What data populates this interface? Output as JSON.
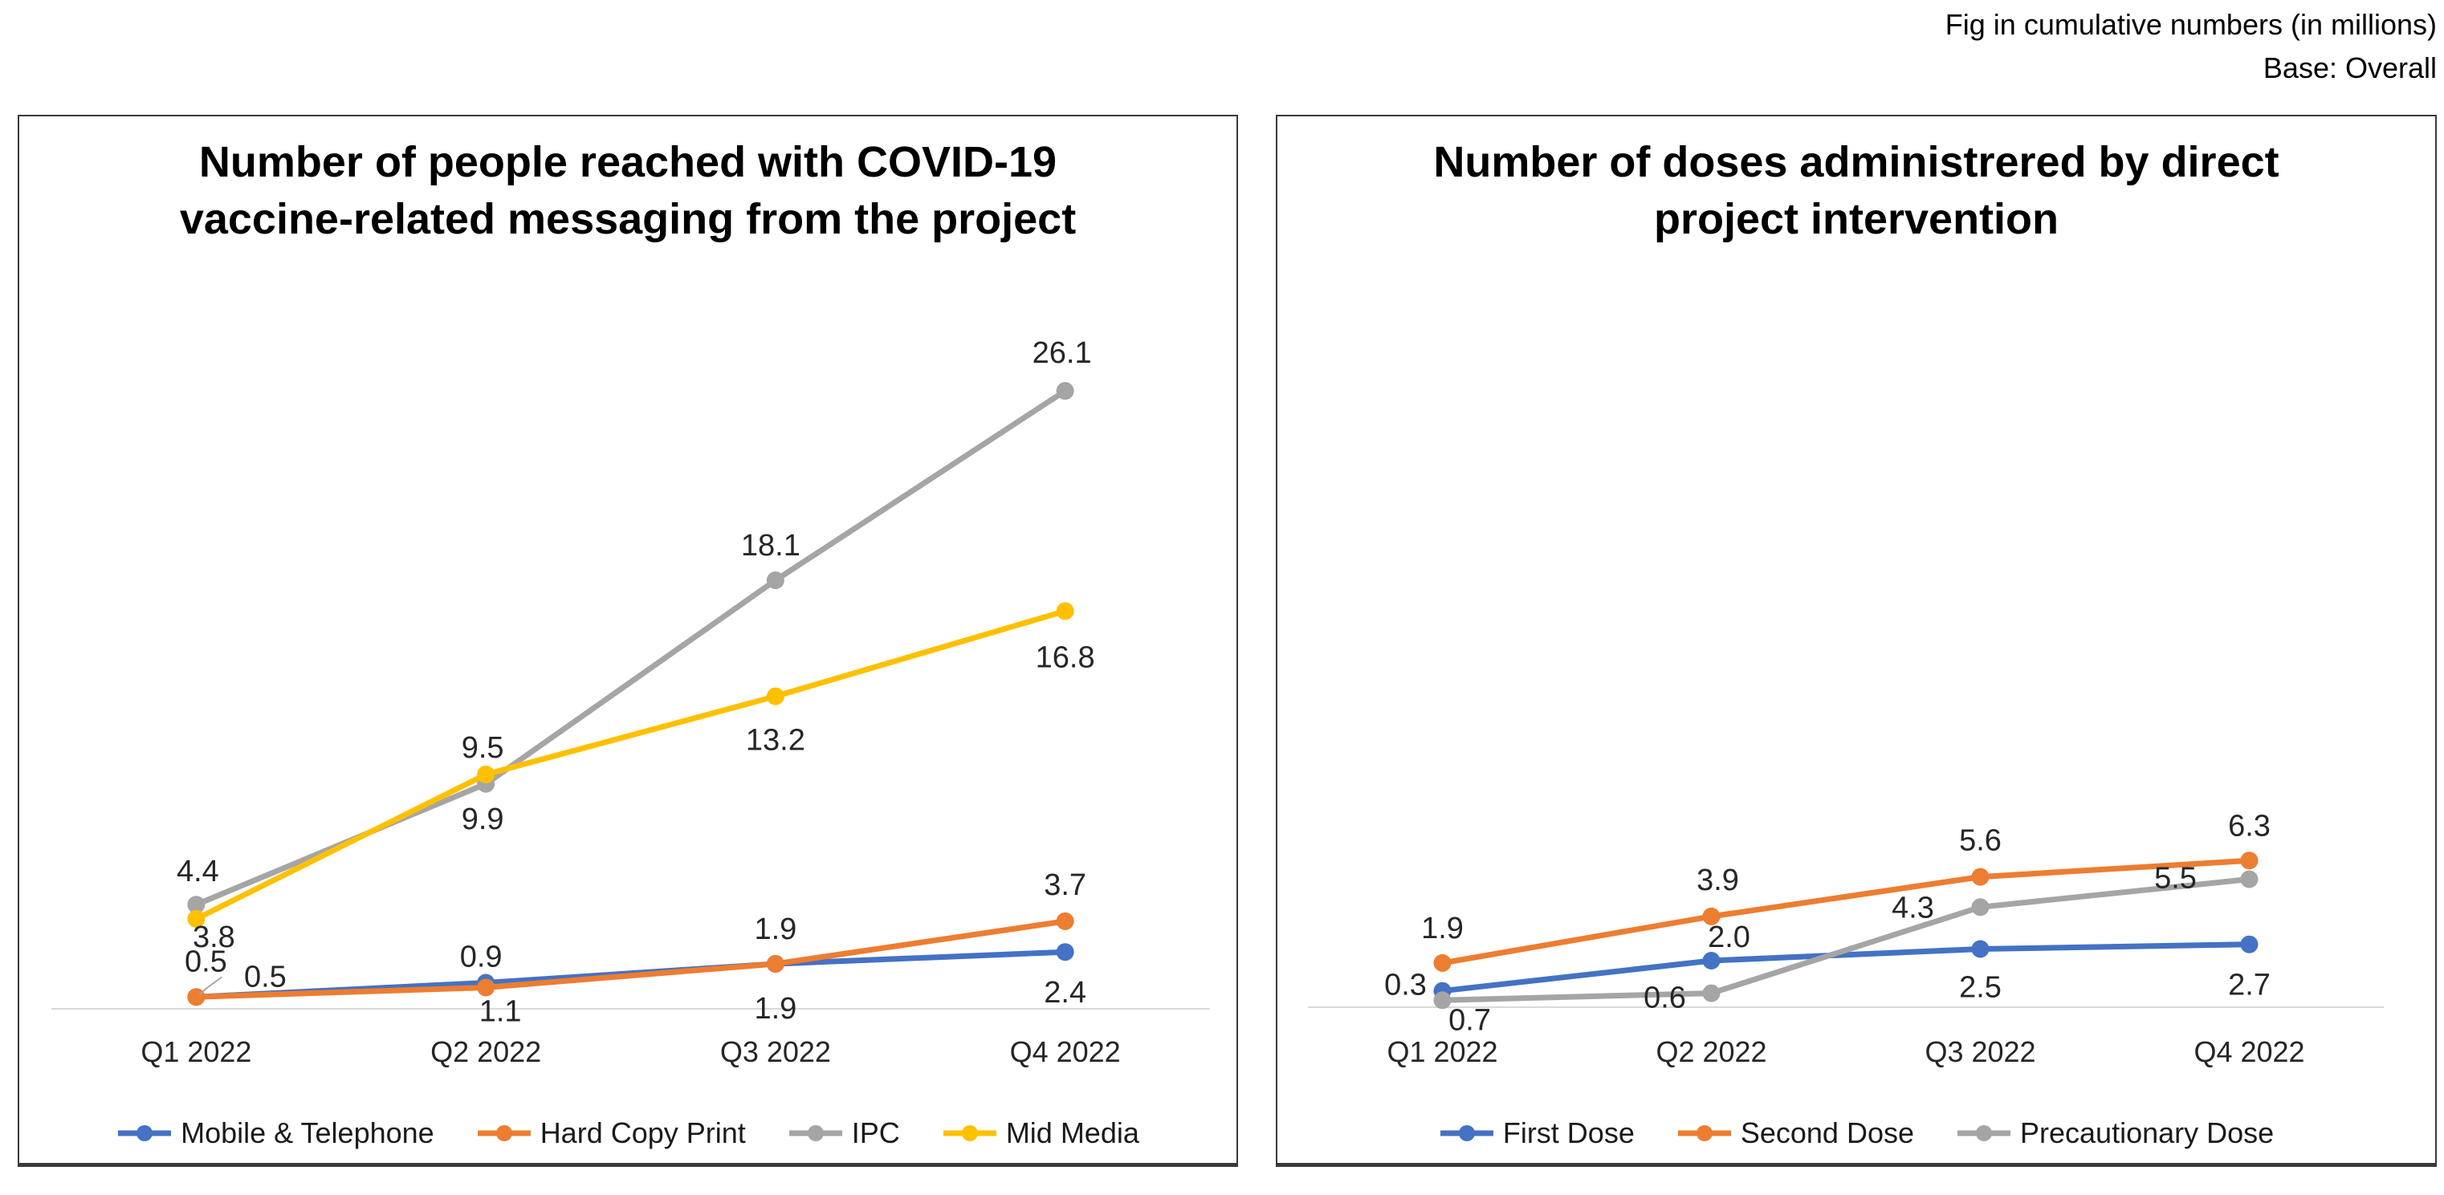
{
  "annotation": {
    "line1": "Fig in cumulative numbers (in millions)",
    "line2": "Base: Overall"
  },
  "colors": {
    "blue": "#4472C4",
    "orange": "#ED7D31",
    "gray": "#A5A5A5",
    "yellow": "#FFC000",
    "axis_line": "#D9D9D9",
    "label_text": "#262626",
    "panel_border": "#3A3A3A",
    "leader_line": "#A6A6A6"
  },
  "chart_data": [
    {
      "type": "line",
      "title_lines": [
        "Number of people reached with COVID-19",
        "vaccine-related messaging from the project"
      ],
      "categories": [
        "Q1 2022",
        "Q2 2022",
        "Q3 2022",
        "Q4 2022"
      ],
      "ylim": [
        0,
        30
      ],
      "grid": false,
      "legend_position": "bottom",
      "markers": true,
      "data_labels": true,
      "series": [
        {
          "name": "Mobile & Telephone",
          "color": "#4472C4",
          "values": [
            0.5,
            1.1,
            1.9,
            2.4
          ],
          "labels": [
            "0.5",
            "1.1",
            "1.9",
            "2.4"
          ],
          "label_offsets": [
            {
              "dx": 86,
              "dy": -26,
              "leader": [
                [
                  32,
                  -25
                ],
                [
                  13,
                  -11
                ],
                [
                  4,
                  -3
                ]
              ]
            },
            {
              "dx": 18,
              "dy": 35
            },
            {
              "dx": 0,
              "dy": 55
            },
            {
              "dx": 0,
              "dy": 50
            }
          ]
        },
        {
          "name": "Hard Copy Print",
          "color": "#ED7D31",
          "values": [
            0.5,
            0.9,
            1.9,
            3.7
          ],
          "labels": [
            "0.5",
            "0.9",
            "1.9",
            "3.7"
          ],
          "label_offsets": [
            {
              "dx": 12,
              "dy": -45
            },
            {
              "dx": -6,
              "dy": -39
            },
            {
              "dx": 0,
              "dy": -44
            },
            {
              "dx": 0,
              "dy": -46
            }
          ]
        },
        {
          "name": "IPC",
          "color": "#A5A5A5",
          "values": [
            4.4,
            9.5,
            18.1,
            26.1
          ],
          "labels": [
            "4.4",
            "9.5",
            "18.1",
            "26.1"
          ],
          "label_offsets": [
            {
              "dx": 2,
              "dy": -42
            },
            {
              "dx": -4,
              "dy": -46
            },
            {
              "dx": -6,
              "dy": -44
            },
            {
              "dx": -4,
              "dy": -48
            }
          ]
        },
        {
          "name": "Mid Media",
          "color": "#FFC000",
          "values": [
            3.8,
            9.9,
            13.2,
            16.8
          ],
          "labels": [
            "3.8",
            "9.9",
            "13.2",
            "16.8"
          ],
          "label_offsets": [
            {
              "dx": 22,
              "dy": 22
            },
            {
              "dx": -4,
              "dy": 55
            },
            {
              "dx": 0,
              "dy": 54
            },
            {
              "dx": 0,
              "dy": 57
            }
          ]
        }
      ]
    },
    {
      "type": "line",
      "title_lines": [
        "Number of doses administrered by direct",
        "project intervention"
      ],
      "categories": [
        "Q1 2022",
        "Q2 2022",
        "Q3 2022",
        "Q4 2022"
      ],
      "ylim": [
        0,
        30
      ],
      "grid": false,
      "legend_position": "bottom",
      "markers": true,
      "data_labels": true,
      "series": [
        {
          "name": "First Dose",
          "color": "#4472C4",
          "values": [
            0.7,
            2.0,
            2.5,
            2.7
          ],
          "labels": [
            "0.7",
            "2.0",
            "2.5",
            "2.7"
          ],
          "label_offsets": [
            {
              "dx": 34,
              "dy": 36
            },
            {
              "dx": 22,
              "dy": -30
            },
            {
              "dx": 0,
              "dy": 47
            },
            {
              "dx": 0,
              "dy": 50
            }
          ]
        },
        {
          "name": "Second Dose",
          "color": "#ED7D31",
          "values": [
            1.9,
            3.9,
            5.6,
            6.3
          ],
          "labels": [
            "1.9",
            "3.9",
            "5.6",
            "6.3"
          ],
          "label_offsets": [
            {
              "dx": 0,
              "dy": -44
            },
            {
              "dx": 8,
              "dy": -46
            },
            {
              "dx": 0,
              "dy": -46
            },
            {
              "dx": 0,
              "dy": -44
            }
          ]
        },
        {
          "name": "Precautionary Dose",
          "color": "#A5A5A5",
          "values": [
            0.3,
            0.6,
            4.3,
            5.5
          ],
          "labels": [
            "0.3",
            "0.6",
            "4.3",
            "5.5"
          ],
          "label_offsets": [
            {
              "dx": -46,
              "dy": -20
            },
            {
              "dx": -58,
              "dy": 5
            },
            {
              "dx": -84,
              "dy": 0
            },
            {
              "dx": -92,
              "dy": -2
            }
          ]
        }
      ]
    }
  ]
}
